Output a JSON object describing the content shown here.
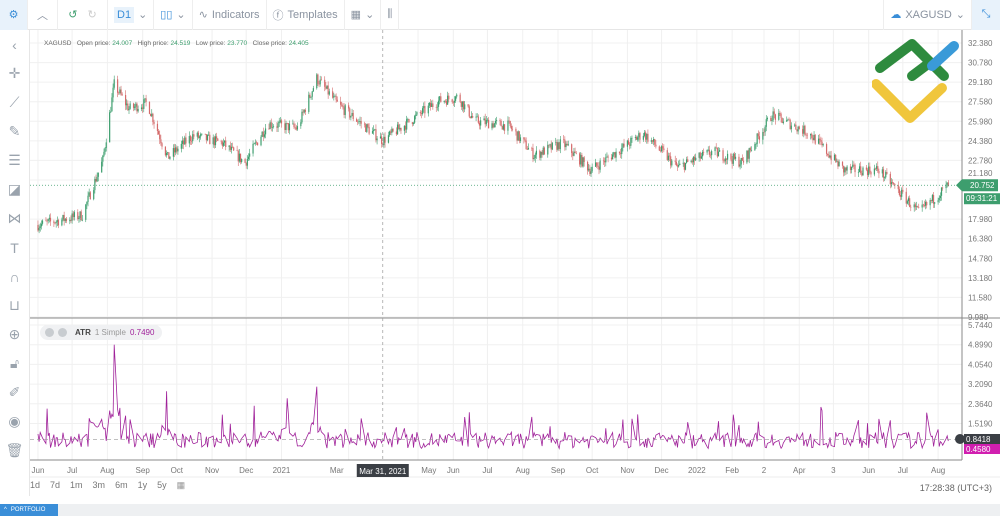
{
  "toolbar": {
    "timeframe": "D1",
    "indicators_label": "Indicators",
    "templates_label": "Templates",
    "symbol": "XAGUSD"
  },
  "legend": {
    "symbol": "XAGUSD",
    "open_label": "Open price:",
    "open": "24.007",
    "high_label": "High price:",
    "high": "24.519",
    "low_label": "Low price:",
    "low": "23.770",
    "close_label": "Close price:",
    "close": "24.405"
  },
  "atr": {
    "name": "ATR",
    "params": "1 Simple",
    "value": "0.7490"
  },
  "price_axis": {
    "ticks": [
      "32.380",
      "30.780",
      "29.180",
      "27.580",
      "25.980",
      "24.380",
      "22.780",
      "21.180",
      "17.980",
      "16.380",
      "14.780",
      "13.180",
      "11.580",
      "9.980"
    ],
    "current_price": "20.752",
    "countdown": "09:31:21"
  },
  "atr_axis": {
    "ticks": [
      "5.7440",
      "4.8990",
      "4.0540",
      "3.2090",
      "2.3640",
      "1.5190"
    ],
    "current": "0.8418",
    "value": "0.4580"
  },
  "time_axis": {
    "labels": [
      "Jun",
      "Jul",
      "Aug",
      "Sep",
      "Oct",
      "Nov",
      "Dec",
      "2021",
      "Mar",
      "May",
      "Jun",
      "Jul",
      "Aug",
      "Sep",
      "Oct",
      "Nov",
      "Dec",
      "2022",
      "Feb",
      "2",
      "Apr",
      "3",
      "Jun",
      "Jul",
      "Aug"
    ],
    "crosshair_date": "Mar 31, 2021"
  },
  "ranges": [
    "1d",
    "7d",
    "1m",
    "3m",
    "6m",
    "1y",
    "5y"
  ],
  "clock": "17:28:38 (UTC+3)",
  "portfolio_label": "PORTFOLIO",
  "colors": {
    "up": "#3d9e6e",
    "down": "#d46a6a",
    "atr": "#a0229a",
    "accent": "#3a8ed8"
  },
  "chart_data": {
    "type": "candlestick",
    "price_path": [
      [
        "2020-06-01",
        17.5
      ],
      [
        "2020-07-10",
        18.3
      ],
      [
        "2020-07-28",
        22.8
      ],
      [
        "2020-08-07",
        29.0
      ],
      [
        "2020-08-20",
        27.0
      ],
      [
        "2020-09-05",
        27.5
      ],
      [
        "2020-09-23",
        23.0
      ],
      [
        "2020-10-15",
        24.8
      ],
      [
        "2020-11-10",
        24.2
      ],
      [
        "2020-11-30",
        22.6
      ],
      [
        "2020-12-20",
        25.8
      ],
      [
        "2021-01-15",
        25.4
      ],
      [
        "2021-02-01",
        29.5
      ],
      [
        "2021-02-20",
        27.3
      ],
      [
        "2021-03-31",
        24.4
      ],
      [
        "2021-05-18",
        27.6
      ],
      [
        "2021-06-05",
        28.0
      ],
      [
        "2021-06-20",
        26.0
      ],
      [
        "2021-07-20",
        25.6
      ],
      [
        "2021-08-11",
        23.2
      ],
      [
        "2021-09-05",
        24.2
      ],
      [
        "2021-09-30",
        22.0
      ],
      [
        "2021-11-15",
        25.0
      ],
      [
        "2021-12-15",
        22.2
      ],
      [
        "2022-01-15",
        23.5
      ],
      [
        "2022-02-10",
        22.6
      ],
      [
        "2022-03-08",
        26.5
      ],
      [
        "2022-04-10",
        25.0
      ],
      [
        "2022-05-10",
        22.0
      ],
      [
        "2022-06-10",
        22.0
      ],
      [
        "2022-07-15",
        18.5
      ],
      [
        "2022-08-10",
        20.752
      ]
    ],
    "atr_spikes": [
      [
        "2020-07-25",
        3.3
      ],
      [
        "2020-08-07",
        4.9
      ],
      [
        "2020-09-22",
        2.9
      ],
      [
        "2020-11-10",
        1.9
      ],
      [
        "2020-12-20",
        2.3
      ],
      [
        "2021-01-06",
        2.6
      ],
      [
        "2021-02-01",
        3.1
      ],
      [
        "2021-08-09",
        1.8
      ],
      [
        "2022-02-24",
        1.6
      ]
    ],
    "atr_baseline": 0.8418
  }
}
